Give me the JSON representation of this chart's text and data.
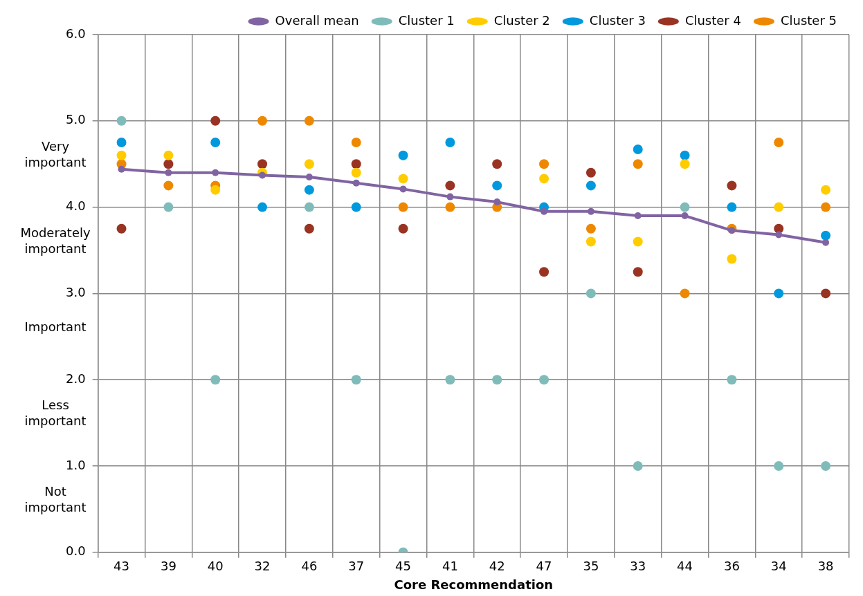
{
  "chart_data": {
    "type": "scatter",
    "xlabel": "Core Recommendation",
    "categories": [
      "43",
      "39",
      "40",
      "32",
      "46",
      "37",
      "45",
      "41",
      "42",
      "47",
      "35",
      "33",
      "44",
      "36",
      "34",
      "38"
    ],
    "series": [
      {
        "name": "Overall mean",
        "type": "line",
        "color": "#8064a2",
        "values": [
          4.44,
          4.4,
          4.4,
          4.37,
          4.35,
          4.28,
          4.21,
          4.12,
          4.06,
          3.95,
          3.95,
          3.9,
          3.9,
          3.73,
          3.68,
          3.59
        ]
      },
      {
        "name": "Cluster 1",
        "color": "#7fbcb9",
        "values": [
          5.0,
          4.0,
          2.0,
          null,
          4.0,
          2.0,
          0.0,
          2.0,
          2.0,
          2.0,
          3.0,
          1.0,
          4.0,
          2.0,
          1.0,
          1.0
        ]
      },
      {
        "name": "Cluster 2",
        "color": "#ffcc00",
        "values": [
          4.6,
          4.6,
          4.2,
          4.4,
          4.5,
          4.4,
          4.33,
          null,
          null,
          4.33,
          3.6,
          3.6,
          4.5,
          3.4,
          4.0,
          4.2
        ]
      },
      {
        "name": "Cluster 3",
        "color": "#0099dd",
        "values": [
          4.75,
          null,
          4.75,
          4.0,
          4.2,
          4.0,
          4.6,
          4.75,
          4.25,
          4.0,
          4.25,
          4.67,
          4.6,
          4.0,
          3.0,
          3.67
        ]
      },
      {
        "name": "Cluster 4",
        "color": "#993322",
        "values": [
          3.75,
          4.5,
          5.0,
          4.5,
          3.75,
          4.5,
          3.75,
          4.25,
          4.5,
          3.25,
          4.4,
          3.25,
          null,
          4.25,
          3.75,
          3.0
        ]
      },
      {
        "name": "Cluster 5",
        "color": "#ee8800",
        "values": [
          4.5,
          4.25,
          4.25,
          5.0,
          5.0,
          4.75,
          4.0,
          4.0,
          4.0,
          4.5,
          3.75,
          4.5,
          3.0,
          3.75,
          4.75,
          4.0
        ]
      }
    ],
    "ylim": [
      0,
      6
    ],
    "yticks": [
      {
        "value": 0,
        "label": "0.0"
      },
      {
        "value": 1,
        "label": "1.0"
      },
      {
        "value": 2,
        "label": "2.0"
      },
      {
        "value": 3,
        "label": "3.0"
      },
      {
        "value": 4,
        "label": "4.0"
      },
      {
        "value": 5,
        "label": "5.0"
      },
      {
        "value": 6,
        "label": "6.0"
      }
    ],
    "annotations": [
      "Very important",
      "Moderately important",
      "Important",
      "Less important",
      "Not important"
    ],
    "grid": true,
    "legend": "top",
    "marker": "circle",
    "line_style": "solid"
  }
}
